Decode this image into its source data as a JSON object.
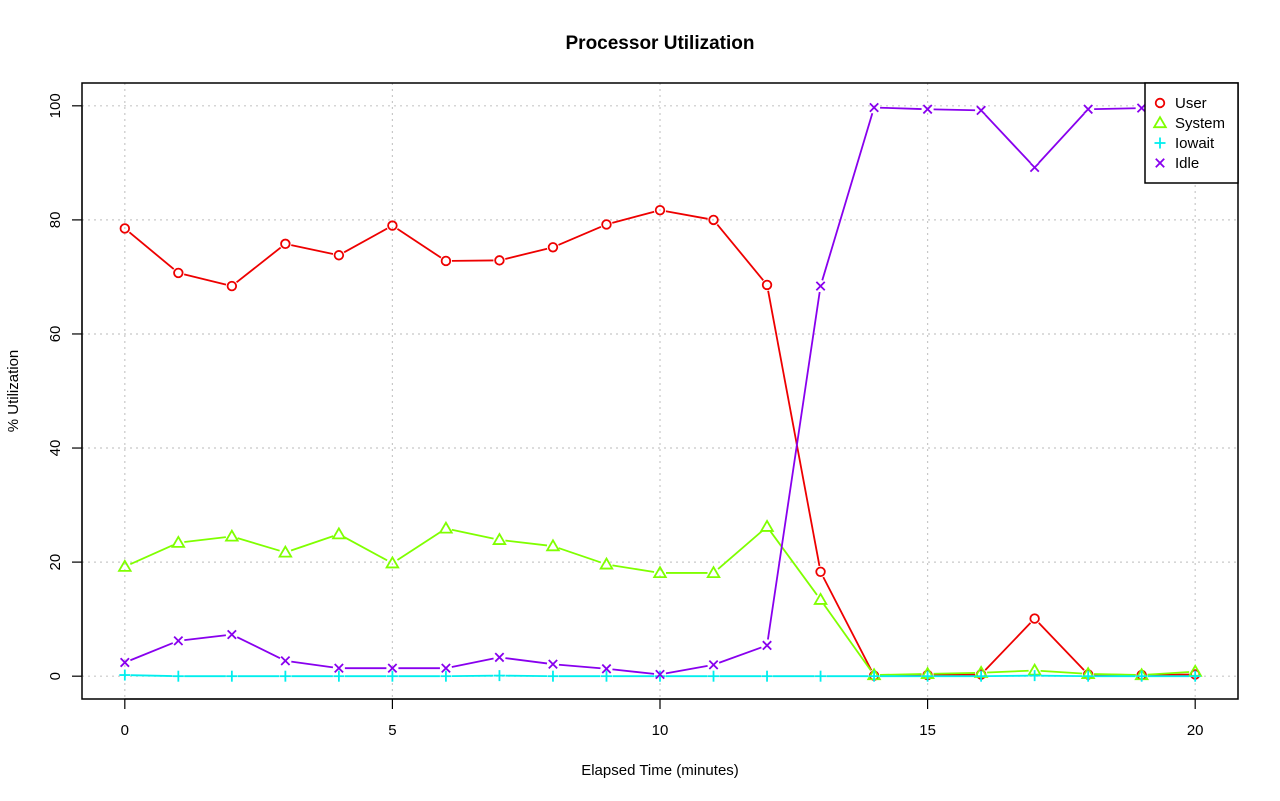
{
  "chart_data": {
    "type": "line",
    "title": "Processor Utilization",
    "xlabel": "Elapsed Time (minutes)",
    "ylabel": "% Utilization",
    "xlim": [
      -0.8,
      20.8
    ],
    "ylim": [
      -4,
      104
    ],
    "xticks": [
      0,
      5,
      10,
      15,
      20
    ],
    "yticks": [
      0,
      20,
      40,
      60,
      80,
      100
    ],
    "grid": true,
    "legend_position": "top-right",
    "x": [
      0,
      1,
      2,
      3,
      4,
      5,
      6,
      7,
      8,
      9,
      10,
      11,
      12,
      13,
      14,
      15,
      16,
      17,
      18,
      19,
      20
    ],
    "series": [
      {
        "name": "User",
        "color": "#ee0000",
        "marker": "circle",
        "values": [
          78.5,
          70.7,
          68.4,
          75.8,
          73.8,
          79.0,
          72.8,
          72.9,
          75.2,
          79.2,
          81.7,
          80.0,
          68.6,
          18.3,
          0.1,
          0.2,
          0.3,
          10.1,
          0.3,
          0.2,
          0.3
        ]
      },
      {
        "name": "System",
        "color": "#7fff00",
        "marker": "triangle",
        "values": [
          19.2,
          23.4,
          24.5,
          21.7,
          24.9,
          19.8,
          25.9,
          23.9,
          22.8,
          19.6,
          18.1,
          18.1,
          26.2,
          13.4,
          0.2,
          0.4,
          0.6,
          1.0,
          0.4,
          0.2,
          0.8
        ]
      },
      {
        "name": "Iowait",
        "color": "#00eeee",
        "marker": "plus",
        "values": [
          0.2,
          0.0,
          0.0,
          0.0,
          0.0,
          0.0,
          0.0,
          0.1,
          0.0,
          0.0,
          0.0,
          0.0,
          0.0,
          0.0,
          0.0,
          0.0,
          0.0,
          0.1,
          0.0,
          0.0,
          0.0
        ]
      },
      {
        "name": "Idle",
        "color": "#8800ee",
        "marker": "x",
        "values": [
          2.4,
          6.2,
          7.3,
          2.7,
          1.4,
          1.4,
          1.4,
          3.3,
          2.1,
          1.3,
          0.3,
          2.0,
          5.4,
          68.4,
          99.7,
          99.4,
          99.2,
          89.2,
          99.4,
          99.6,
          98.9
        ]
      }
    ]
  }
}
